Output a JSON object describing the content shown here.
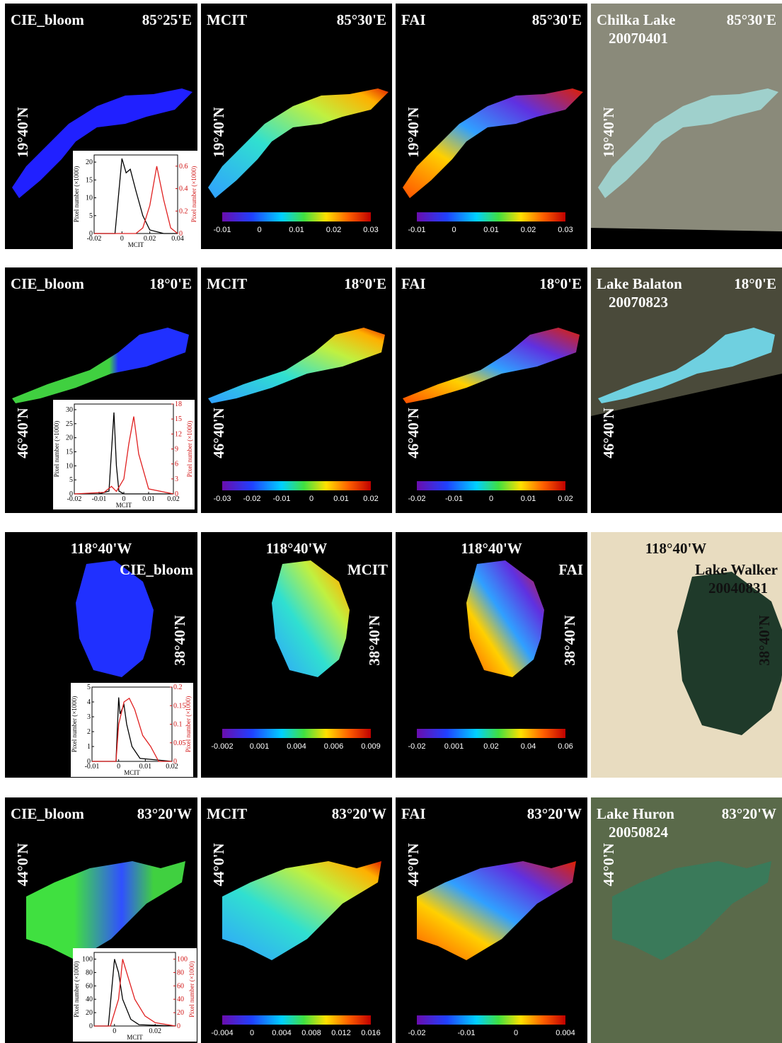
{
  "rows": [
    {
      "panels": [
        {
          "title": "CIE_bloom",
          "lon": "85°25'E",
          "lat": "19°40'N"
        },
        {
          "title": "MCIT",
          "lon": "85°30'E",
          "lat": "19°40'N",
          "colorbar": [
            -0.01,
            0,
            0.01,
            0.02,
            0.03
          ]
        },
        {
          "title": "FAI",
          "lon": "85°30'E",
          "lat": "19°40'N",
          "colorbar": [
            -0.01,
            0,
            0.01,
            0.02,
            0.03
          ]
        },
        {
          "title": "Chilka Lake",
          "date": "20070401",
          "lon": "85°30'E",
          "lat": "19°40'N"
        }
      ],
      "inset": {
        "x_label": "MCIT",
        "y_label": "Pixel number (×1000)",
        "y2_label": "Pixel number (×1000)",
        "xlim": [
          -0.02,
          0.04
        ],
        "ylim": [
          0,
          22
        ],
        "y2lim": [
          0,
          0.7
        ],
        "xticks": [
          -0.02,
          0,
          0.02,
          0.04
        ],
        "yticks": [
          0,
          5,
          10,
          15,
          20
        ],
        "y2ticks": [
          0,
          0.2,
          0.4,
          0.6
        ],
        "series": [
          {
            "color": "#000000",
            "x": [
              -0.02,
              -0.005,
              0,
              0.003,
              0.006,
              0.01,
              0.015,
              0.02,
              0.03,
              0.04
            ],
            "values": [
              0,
              0,
              21,
              17,
              18,
              12,
              5,
              1,
              0,
              0
            ]
          },
          {
            "color": "#e02020",
            "axis": "y2",
            "x": [
              -0.02,
              0.01,
              0.015,
              0.02,
              0.025,
              0.03,
              0.035,
              0.04
            ],
            "values": [
              0,
              0,
              0.05,
              0.25,
              0.6,
              0.3,
              0.05,
              0
            ]
          }
        ]
      }
    },
    {
      "panels": [
        {
          "title": "CIE_bloom",
          "lon": "18°0'E",
          "lat": "46°40'N"
        },
        {
          "title": "MCIT",
          "lon": "18°0'E",
          "lat": "46°40'N",
          "colorbar": [
            -0.03,
            -0.02,
            -0.01,
            0,
            0.01,
            0.02
          ]
        },
        {
          "title": "FAI",
          "lon": "18°0'E",
          "lat": "46°40'N",
          "colorbar": [
            -0.02,
            -0.01,
            0,
            0.01,
            0.02
          ]
        },
        {
          "title": "Lake Balaton",
          "date": "20070823",
          "lon": "18°0'E",
          "lat": "46°40'N"
        }
      ],
      "inset": {
        "x_label": "MCIT",
        "y_label": "Pixel number (×1000)",
        "y2_label": "Pixel number (×1000)",
        "xlim": [
          -0.02,
          0.02
        ],
        "ylim": [
          0,
          32
        ],
        "y2lim": [
          0,
          18
        ],
        "xticks": [
          -0.02,
          -0.01,
          0,
          0.01,
          0.02
        ],
        "yticks": [
          0,
          5,
          10,
          15,
          20,
          25,
          30
        ],
        "y2ticks": [
          0,
          3,
          6,
          9,
          12,
          15,
          18
        ],
        "series": [
          {
            "color": "#000000",
            "x": [
              -0.02,
              -0.01,
              -0.006,
              -0.004,
              -0.003,
              -0.002,
              0,
              0.02
            ],
            "values": [
              0,
              0,
              1,
              29,
              10,
              1,
              0,
              0
            ]
          },
          {
            "color": "#e02020",
            "axis": "y2",
            "x": [
              -0.02,
              -0.008,
              -0.005,
              -0.003,
              0,
              0.002,
              0.004,
              0.006,
              0.01,
              0.02
            ],
            "values": [
              0,
              0.3,
              1.5,
              0.5,
              3,
              10,
              15.5,
              8,
              1,
              0
            ]
          }
        ]
      }
    },
    {
      "panels": [
        {
          "title": "CIE_bloom",
          "lon": "118°40'W",
          "lat": "38°40'N"
        },
        {
          "title": "MCIT",
          "lon": "118°40'W",
          "lat": "38°40'N",
          "colorbar": [
            -0.002,
            0.001,
            0.004,
            0.006,
            0.009
          ]
        },
        {
          "title": "FAI",
          "lon": "118°40'W",
          "lat": "38°40'N",
          "colorbar": [
            -0.02,
            0.001,
            0.02,
            0.04,
            0.06
          ]
        },
        {
          "title": "Lake Walker",
          "date": "20040831",
          "lon": "118°40'W",
          "lat": "38°40'N"
        }
      ],
      "inset": {
        "x_label": "MCIT",
        "y_label": "Pixel number (×1000)",
        "y2_label": "Pixel number (×1000)",
        "xlim": [
          -0.01,
          0.02
        ],
        "ylim": [
          0,
          5
        ],
        "y2lim": [
          0,
          0.2
        ],
        "xticks": [
          -0.01,
          0,
          0.01,
          0.02
        ],
        "yticks": [
          0,
          1,
          2,
          3,
          4,
          5
        ],
        "y2ticks": [
          0,
          0.05,
          0.1,
          0.15,
          0.2
        ],
        "series": [
          {
            "color": "#000000",
            "x": [
              -0.01,
              -0.001,
              0,
              0.0005,
              0.002,
              0.003,
              0.005,
              0.008,
              0.02
            ],
            "values": [
              0,
              0,
              4.3,
              3.2,
              3.8,
              2.5,
              1,
              0.2,
              0
            ]
          },
          {
            "color": "#e02020",
            "axis": "y2",
            "x": [
              -0.01,
              -0.001,
              0,
              0.002,
              0.004,
              0.006,
              0.009,
              0.012,
              0.015,
              0.02
            ],
            "values": [
              0,
              0,
              0.1,
              0.16,
              0.17,
              0.14,
              0.07,
              0.04,
              0,
              0
            ]
          }
        ]
      }
    },
    {
      "panels": [
        {
          "title": "CIE_bloom",
          "lon": "83°20'W",
          "lat": "44°0'N"
        },
        {
          "title": "MCIT",
          "lon": "83°20'W",
          "lat": "44°0'N",
          "colorbar": [
            -0.004,
            0,
            0.004,
            0.008,
            0.012,
            0.016
          ]
        },
        {
          "title": "FAI",
          "lon": "83°20'W",
          "lat": "44°0'N",
          "colorbar": [
            -0.02,
            -0.01,
            0,
            0.004
          ]
        },
        {
          "title": "Lake Huron",
          "date": "20050824",
          "lon": "83°20'W",
          "lat": "44°0'N"
        }
      ],
      "inset": {
        "x_label": "MCIT",
        "y_label": "Pixel number (×1000)",
        "y2_label": "Pixel number (×1000)",
        "xlim": [
          -0.01,
          0.03
        ],
        "ylim": [
          0,
          110
        ],
        "y2lim": [
          0,
          110
        ],
        "xticks": [
          0,
          0.02
        ],
        "yticks": [
          0,
          20,
          40,
          60,
          80,
          100
        ],
        "y2ticks": [
          0,
          20,
          40,
          60,
          80,
          100
        ],
        "series": [
          {
            "color": "#000000",
            "x": [
              -0.01,
              -0.003,
              0,
              0.002,
              0.004,
              0.008,
              0.012,
              0.03
            ],
            "values": [
              0,
              0,
              100,
              80,
              40,
              10,
              2,
              0
            ]
          },
          {
            "color": "#e02020",
            "axis": "y2",
            "x": [
              -0.01,
              -0.002,
              0.002,
              0.004,
              0.006,
              0.01,
              0.015,
              0.02,
              0.03
            ],
            "values": [
              0,
              0,
              40,
              100,
              80,
              40,
              15,
              5,
              0
            ]
          }
        ]
      }
    }
  ]
}
